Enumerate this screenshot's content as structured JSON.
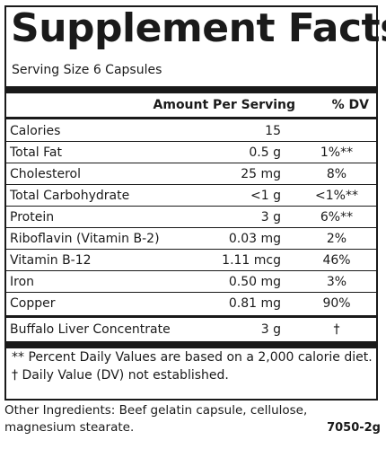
{
  "title": "Supplement Facts",
  "serving_size": "Serving Size 6 Capsules",
  "headers": {
    "amount": "Amount Per Serving",
    "dv": "% DV"
  },
  "rows": [
    {
      "name": "Calories",
      "amount": "15",
      "dv": ""
    },
    {
      "name": "Total Fat",
      "amount": "0.5 g",
      "dv": "1%**"
    },
    {
      "name": "Cholesterol",
      "amount": "25 mg",
      "dv": "8%"
    },
    {
      "name": "Total Carbohydrate",
      "amount": "<1 g",
      "dv": "<1%**"
    },
    {
      "name": "Protein",
      "amount": "3 g",
      "dv": "6%**"
    },
    {
      "name": "Riboflavin (Vitamin B-2)",
      "amount": "0.03 mg",
      "dv": "2%"
    },
    {
      "name": "Vitamin B-12",
      "amount": "1.11 mcg",
      "dv": "46%"
    },
    {
      "name": "Iron",
      "amount": "0.50 mg",
      "dv": "3%"
    },
    {
      "name": "Copper",
      "amount": "0.81 mg",
      "dv": "90%"
    }
  ],
  "special_row": {
    "name": "Buffalo Liver Concentrate",
    "amount": "3 g",
    "dv": "†"
  },
  "footnotes": [
    "** Percent Daily Values are based on a 2,000 calorie diet.",
    "† Daily Value (DV) not established."
  ],
  "ingredients": [
    "Other Ingredients:  Beef gelatin capsule, cellulose,",
    "magnesium stearate."
  ],
  "product_code": "7050-2g"
}
